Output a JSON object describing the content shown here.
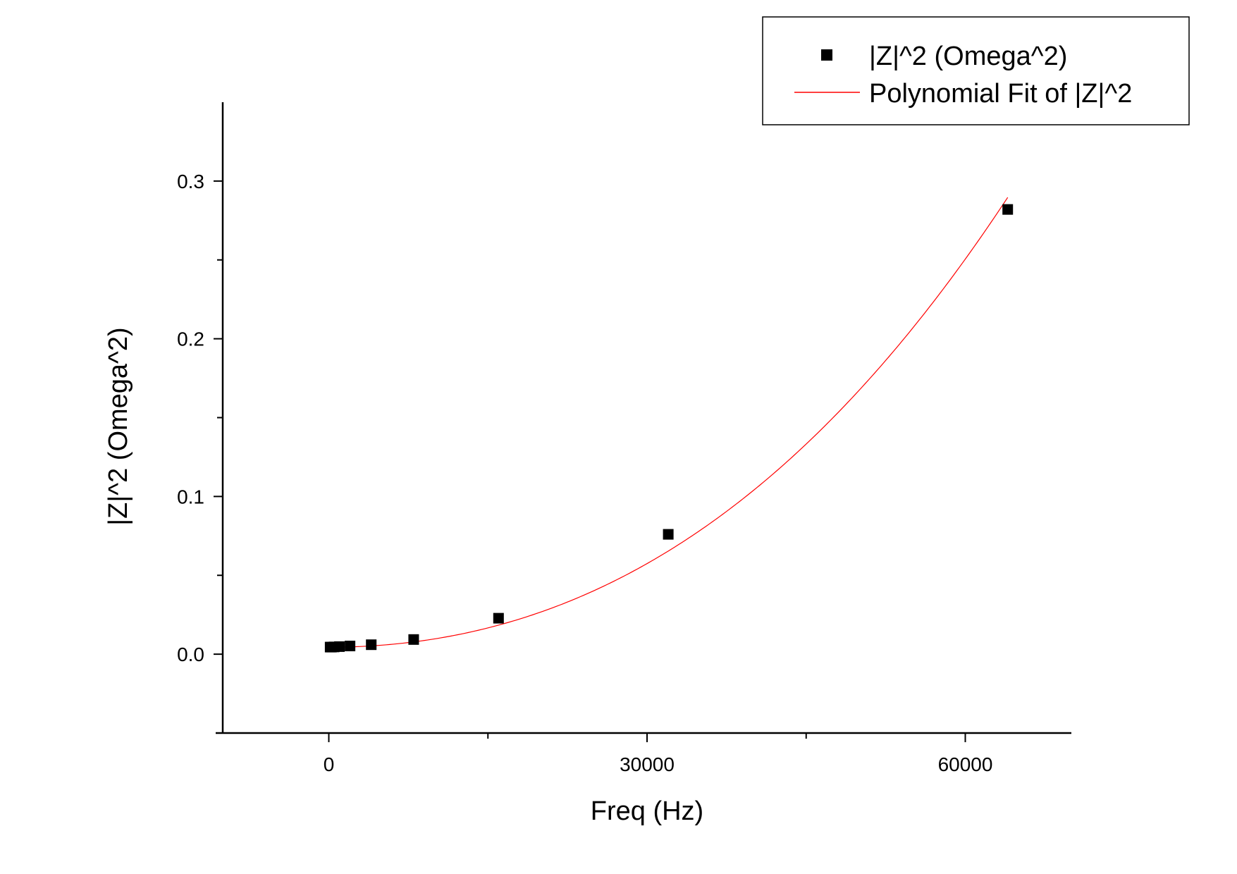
{
  "chart_data": {
    "type": "scatter",
    "title": "",
    "xlabel": "Freq (Hz)",
    "ylabel": "|Z|^2 (Omega^2)",
    "xlim": [
      -10000,
      70000
    ],
    "ylim": [
      -0.05,
      0.35
    ],
    "x_ticks": [
      0,
      30000,
      60000
    ],
    "x_tick_labels": [
      "0",
      "30000",
      "60000"
    ],
    "x_minor_ticks": [
      15000,
      45000
    ],
    "y_ticks": [
      0.0,
      0.1,
      0.2,
      0.3
    ],
    "y_tick_labels": [
      "0.0",
      "0.1",
      "0.2",
      "0.3"
    ],
    "y_minor_ticks": [
      -0.05,
      0.05,
      0.15,
      0.25
    ],
    "grid": false,
    "legend_position": "top-right",
    "series": [
      {
        "name": "|Z|^2 (Omega^2)",
        "kind": "scatter",
        "marker": "square",
        "color": "#000000",
        "x": [
          125,
          250,
          500,
          1000,
          2000,
          4000,
          8000,
          16000,
          32000,
          64000
        ],
        "y": [
          0.0045,
          0.0045,
          0.0046,
          0.0048,
          0.0052,
          0.006,
          0.0093,
          0.0228,
          0.076,
          0.282
        ]
      },
      {
        "name": "Polynomial Fit of |Z|^2",
        "kind": "line",
        "color": "#ff0000",
        "fit_coefficients": [
          0.0044,
          1e-08,
          4.9e-11,
          3.2e-16
        ],
        "x_range": [
          0,
          64000
        ]
      }
    ]
  }
}
